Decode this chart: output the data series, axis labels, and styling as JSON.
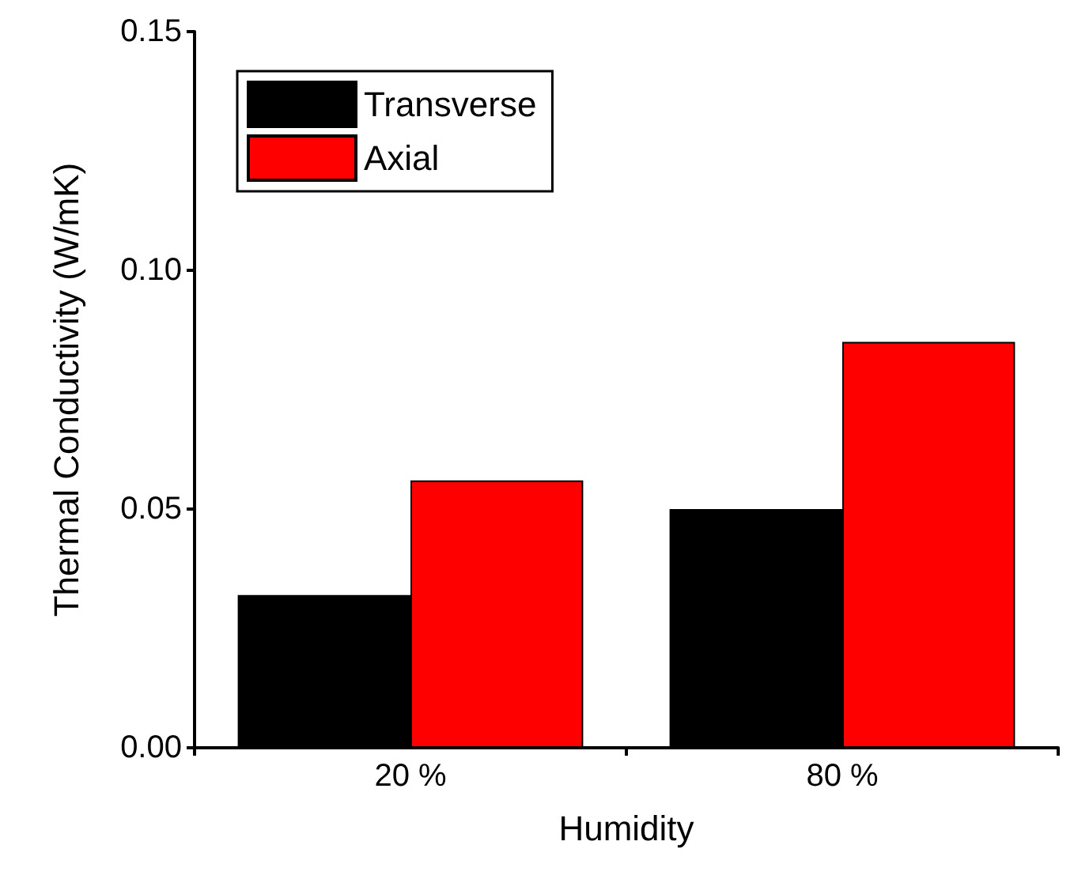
{
  "chart_data": {
    "type": "bar",
    "xlabel": "Humidity",
    "ylabel": "Thermal Conductivity (W/mK)",
    "categories": [
      "20 %",
      "80 %"
    ],
    "series": [
      {
        "name": "Transverse",
        "color": "#000000",
        "values": [
          0.032,
          0.05
        ]
      },
      {
        "name": "Axial",
        "color": "#ff0000",
        "values": [
          0.056,
          0.085
        ]
      }
    ],
    "ylim": [
      0,
      0.15
    ],
    "yticks": [
      {
        "value": 0,
        "label": "0.00"
      },
      {
        "value": 0.05,
        "label": "0.05"
      },
      {
        "value": 0.1,
        "label": "0.10"
      },
      {
        "value": 0.15,
        "label": "0.15"
      }
    ],
    "grid": false,
    "legend": "top left"
  }
}
